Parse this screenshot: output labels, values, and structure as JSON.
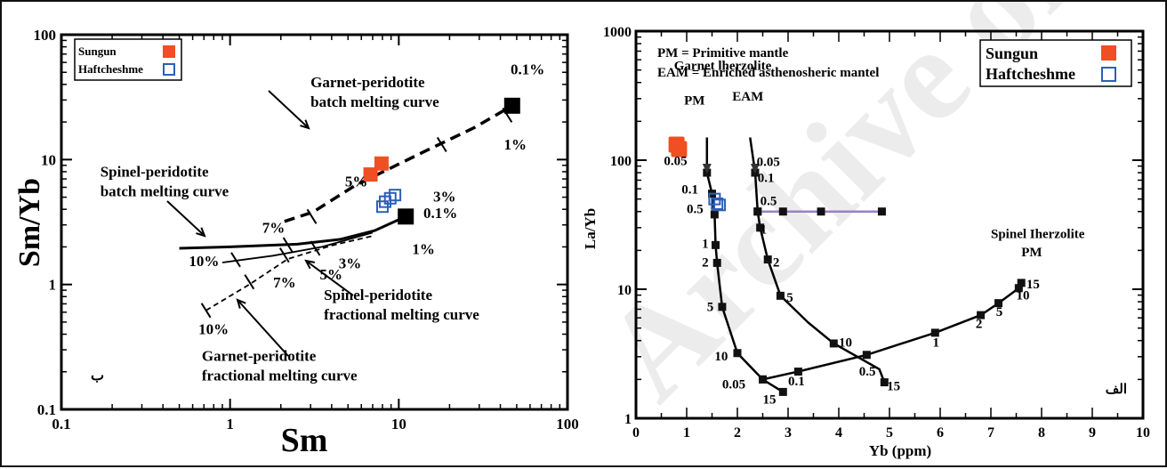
{
  "watermark": "Archive of SID",
  "chart_data": [
    {
      "type": "scatter",
      "panel_label": "ب",
      "xlabel": "Sm",
      "ylabel": "Sm/Yb",
      "xscale": "log",
      "yscale": "log",
      "xlim": [
        0.1,
        100
      ],
      "ylim": [
        0.1,
        100
      ],
      "xticks": [
        0.1,
        1,
        10,
        100
      ],
      "xtick_labels": [
        "0.1",
        "1",
        "10",
        "100"
      ],
      "yticks": [
        0.1,
        1,
        10,
        100
      ],
      "ytick_labels": [
        "0.1",
        "1",
        "10",
        "100"
      ],
      "legend": {
        "placement": "top-left",
        "entries": [
          {
            "name": "Sungun",
            "marker": "filled-square",
            "color": "#f04e23"
          },
          {
            "name": "Haftcheshme",
            "marker": "open-square",
            "color": "#2d5fb8"
          }
        ]
      },
      "series": [
        {
          "name": "Sungun",
          "color": "#f04e23",
          "points": [
            [
              6.8,
              7.6
            ],
            [
              7.9,
              9.3
            ]
          ]
        },
        {
          "name": "Haftcheshme",
          "color": "#2d5fb8",
          "points": [
            [
              8.0,
              4.2
            ],
            [
              8.3,
              4.6
            ],
            [
              8.9,
              4.9
            ],
            [
              9.5,
              5.2
            ]
          ]
        }
      ],
      "reference_points": [
        [
          47,
          27
        ],
        [
          11,
          3.5
        ]
      ],
      "curves": [
        {
          "name": "Garnet-peridotite batch melting curve",
          "style": "dashed-thick",
          "points": [
            [
              2.1,
              3.2
            ],
            [
              3.1,
              3.8
            ],
            [
              5.5,
              6.2
            ],
            [
              14,
              11.5
            ],
            [
              28,
              18
            ],
            [
              47,
              27
            ]
          ]
        },
        {
          "name": "Garnet-peridotite fractional melting curve",
          "style": "dashed-thin",
          "points": [
            [
              0.72,
              0.62
            ],
            [
              1.3,
              1.0
            ],
            [
              2.2,
              1.6
            ],
            [
              4.0,
              2.05
            ],
            [
              7.0,
              2.45
            ]
          ]
        },
        {
          "name": "Spinel-peridotite batch melting curve",
          "style": "solid-thick",
          "points": [
            [
              0.5,
              1.95
            ],
            [
              1.0,
              2.0
            ],
            [
              2.5,
              2.1
            ],
            [
              4.5,
              2.3
            ],
            [
              7.2,
              2.7
            ],
            [
              11,
              3.5
            ]
          ]
        },
        {
          "name": "Spinel-peridotite fractional melting curve",
          "style": "solid-thin",
          "points": [
            [
              0.9,
              1.5
            ],
            [
              1.8,
              1.7
            ],
            [
              3.5,
              2.0
            ],
            [
              7.0,
              2.6
            ]
          ]
        }
      ],
      "annotations": [
        {
          "text": "0.1%",
          "x": 46,
          "y": 48
        },
        {
          "text": "1%",
          "x": 42,
          "y": 12
        },
        {
          "text": "3%",
          "x": 16,
          "y": 4.6
        },
        {
          "text": "5%",
          "x": 4.8,
          "y": 6.1
        },
        {
          "text": "7%",
          "x": 1.55,
          "y": 2.6
        },
        {
          "text": "0.1%",
          "x": 14,
          "y": 3.4
        },
        {
          "text": "1%",
          "x": 12,
          "y": 1.75
        },
        {
          "text": "3%",
          "x": 4.4,
          "y": 1.35
        },
        {
          "text": "5%",
          "x": 3.4,
          "y": 1.1
        },
        {
          "text": "7%",
          "x": 1.8,
          "y": 0.95
        },
        {
          "text": "10%",
          "x": 0.57,
          "y": 1.4
        },
        {
          "text": "10%",
          "x": 0.65,
          "y": 0.4
        }
      ],
      "curve_labels": [
        {
          "lines": [
            "Garnet-peridotite",
            "batch melting curve"
          ],
          "x": 3.0,
          "y": 38
        },
        {
          "lines": [
            "Spinel-peridotite",
            "batch melting curve"
          ],
          "x": 0.17,
          "y": 7.3
        },
        {
          "lines": [
            "Spinel-peridotite",
            "fractional melting curve"
          ],
          "x": 3.6,
          "y": 0.75
        },
        {
          "lines": [
            "Garnet-peridotite",
            "fractional melting curve"
          ],
          "x": 0.68,
          "y": 0.245
        }
      ]
    },
    {
      "type": "scatter",
      "panel_label": "الف",
      "xlabel": "Yb (ppm)",
      "ylabel": "La/Yb",
      "xscale": "linear",
      "yscale": "log",
      "xlim": [
        0,
        10
      ],
      "ylim": [
        1,
        1000
      ],
      "xticks": [
        0,
        1,
        2,
        3,
        4,
        5,
        6,
        7,
        8,
        9,
        10
      ],
      "xtick_labels": [
        "0",
        "1",
        "2",
        "3",
        "4",
        "5",
        "6",
        "7",
        "8",
        "9",
        "10"
      ],
      "yticks": [
        1,
        10,
        100,
        1000
      ],
      "ytick_labels": [
        "1",
        "10",
        "100",
        "1000"
      ],
      "notes": [
        "PM = Primitive mantle",
        "EAM = Enriched asthenosheric mantel"
      ],
      "legend": {
        "placement": "top-right",
        "entries": [
          {
            "name": "Sungun",
            "marker": "filled-square",
            "color": "#f04e23"
          },
          {
            "name": "Haftcheshme",
            "marker": "open-square",
            "color": "#2d5fb8"
          }
        ]
      },
      "series": [
        {
          "name": "Sungun",
          "color": "#f04e23",
          "points": [
            [
              0.8,
              132
            ],
            [
              0.85,
              122
            ]
          ]
        },
        {
          "name": "Haftcheshme",
          "color": "#2d5fb8",
          "points": [
            [
              1.55,
              50
            ],
            [
              1.6,
              46
            ],
            [
              1.65,
              45
            ]
          ]
        }
      ],
      "curves": [
        {
          "name": "Garnet lherzolite PM",
          "style": "solid",
          "points": [
            [
              1.4,
              150
            ],
            [
              1.4,
              80
            ],
            [
              1.5,
              55
            ],
            [
              1.55,
              38
            ],
            [
              1.57,
              22
            ],
            [
              1.6,
              16
            ],
            [
              1.7,
              7.3
            ],
            [
              2.0,
              3.2
            ],
            [
              2.5,
              2.0
            ],
            [
              2.9,
              1.6
            ]
          ],
          "markers": [
            [
              1.4,
              80
            ],
            [
              1.5,
              55
            ],
            [
              1.55,
              38
            ],
            [
              1.57,
              22
            ],
            [
              1.6,
              16
            ],
            [
              1.7,
              7.3
            ],
            [
              2.0,
              3.2
            ],
            [
              2.5,
              2.0
            ],
            [
              2.9,
              1.6
            ]
          ]
        },
        {
          "name": "Garnet lherzolite EAM",
          "style": "solid",
          "points": [
            [
              2.25,
              150
            ],
            [
              2.35,
              80
            ],
            [
              2.4,
              40
            ],
            [
              2.45,
              30
            ],
            [
              2.6,
              17
            ],
            [
              2.85,
              8.9
            ],
            [
              3.4,
              5.5
            ],
            [
              3.9,
              3.8
            ],
            [
              4.8,
              2.4
            ],
            [
              4.9,
              1.9
            ]
          ],
          "markers": [
            [
              2.35,
              80
            ],
            [
              2.4,
              40
            ],
            [
              2.45,
              30
            ],
            [
              2.6,
              17
            ],
            [
              2.85,
              8.9
            ],
            [
              3.9,
              3.8
            ],
            [
              4.9,
              1.9
            ]
          ]
        },
        {
          "name": "Spinel lherzolite PM",
          "style": "solid",
          "points": [
            [
              2.5,
              2.0
            ],
            [
              3.2,
              2.3
            ],
            [
              4.55,
              3.1
            ],
            [
              5.9,
              4.6
            ],
            [
              6.8,
              6.3
            ],
            [
              7.15,
              7.8
            ],
            [
              7.55,
              10.2
            ],
            [
              7.6,
              11.2
            ]
          ],
          "markers": [
            [
              2.5,
              2.0
            ],
            [
              3.2,
              2.3
            ],
            [
              4.55,
              3.1
            ],
            [
              5.9,
              4.6
            ],
            [
              6.8,
              6.3
            ],
            [
              7.15,
              7.8
            ],
            [
              7.55,
              10.2
            ],
            [
              7.6,
              11.2
            ]
          ]
        },
        {
          "name": "EAM mixing line",
          "style": "solid-purple",
          "color": "#9b7ec8",
          "points": [
            [
              2.4,
              40
            ],
            [
              2.9,
              40
            ],
            [
              3.65,
              40
            ],
            [
              4.85,
              40
            ]
          ],
          "markers": [
            [
              2.4,
              40
            ],
            [
              2.9,
              40
            ],
            [
              3.65,
              40
            ],
            [
              4.85,
              40
            ]
          ]
        }
      ],
      "annotations": [
        {
          "text": "Garnet lherzolite",
          "x": 0.75,
          "y": 500
        },
        {
          "text": "PM",
          "x": 0.95,
          "y": 270
        },
        {
          "text": "EAM",
          "x": 1.9,
          "y": 290
        },
        {
          "text": "0.05",
          "x": 0.55,
          "y": 92
        },
        {
          "text": "0.1",
          "x": 0.9,
          "y": 55
        },
        {
          "text": "0.5",
          "x": 1.0,
          "y": 39
        },
        {
          "text": "1",
          "x": 1.3,
          "y": 21
        },
        {
          "text": "2",
          "x": 1.3,
          "y": 15
        },
        {
          "text": "5",
          "x": 1.4,
          "y": 6.8
        },
        {
          "text": "10",
          "x": 1.55,
          "y": 2.8
        },
        {
          "text": "0.05",
          "x": 1.7,
          "y": 1.7
        },
        {
          "text": "15",
          "x": 2.5,
          "y": 1.3
        },
        {
          "text": "0.05",
          "x": 2.38,
          "y": 90
        },
        {
          "text": "0.1",
          "x": 2.4,
          "y": 68
        },
        {
          "text": "0.5",
          "x": 2.45,
          "y": 45
        },
        {
          "text": "1",
          "x": 2.45,
          "y": 27
        },
        {
          "text": "2",
          "x": 2.7,
          "y": 15
        },
        {
          "text": "5",
          "x": 2.97,
          "y": 8.0
        },
        {
          "text": "10",
          "x": 4.0,
          "y": 3.6
        },
        {
          "text": "15",
          "x": 4.95,
          "y": 1.65
        },
        {
          "text": "0.1",
          "x": 3.0,
          "y": 1.8
        },
        {
          "text": "0.5",
          "x": 4.4,
          "y": 2.15
        },
        {
          "text": "1",
          "x": 5.85,
          "y": 3.6
        },
        {
          "text": "2",
          "x": 6.7,
          "y": 5.0
        },
        {
          "text": "5",
          "x": 7.1,
          "y": 6.2
        },
        {
          "text": "10",
          "x": 7.5,
          "y": 8.3
        },
        {
          "text": "15",
          "x": 7.7,
          "y": 10.2
        },
        {
          "text": "Spinel Iherzolite",
          "x": 7.0,
          "y": 25
        },
        {
          "text": "PM",
          "x": 7.6,
          "y": 18
        }
      ]
    }
  ]
}
